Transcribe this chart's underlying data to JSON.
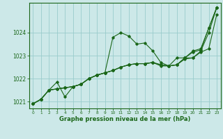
{
  "title": "Graphe pression niveau de la mer (hPa)",
  "bg_color": "#cce8e8",
  "grid_color": "#99cccc",
  "line_color": "#1a6618",
  "text_color": "#1a6618",
  "xlim": [
    -0.5,
    23.5
  ],
  "ylim": [
    1020.7,
    1025.3
  ],
  "yticks": [
    1021,
    1022,
    1023,
    1024
  ],
  "xticks": [
    0,
    1,
    2,
    3,
    4,
    5,
    6,
    7,
    8,
    9,
    10,
    11,
    12,
    13,
    14,
    15,
    16,
    17,
    18,
    19,
    20,
    21,
    22,
    23
  ],
  "series": [
    [
      1020.9,
      1021.1,
      1021.5,
      1021.55,
      1021.6,
      1021.65,
      1021.75,
      1022.0,
      1022.15,
      1022.25,
      1023.8,
      1024.0,
      1023.85,
      1023.5,
      1023.55,
      1023.2,
      1022.7,
      1022.55,
      1022.9,
      1022.9,
      1023.2,
      1023.3,
      1024.2,
      1025.1
    ],
    [
      1020.9,
      1021.1,
      1021.5,
      1021.55,
      1021.6,
      1021.65,
      1021.75,
      1022.0,
      1022.15,
      1022.25,
      1022.35,
      1022.5,
      1022.6,
      1022.65,
      1022.65,
      1022.7,
      1022.6,
      1022.55,
      1022.6,
      1022.9,
      1023.15,
      1023.25,
      1024.2,
      1025.1
    ],
    [
      1020.9,
      1021.1,
      1021.5,
      1021.85,
      1021.2,
      1021.65,
      1021.75,
      1022.0,
      1022.15,
      1022.25,
      1022.35,
      1022.5,
      1022.6,
      1022.65,
      1022.65,
      1022.7,
      1022.6,
      1022.55,
      1022.6,
      1022.9,
      1022.9,
      1023.2,
      1024.0,
      1025.1
    ],
    [
      1020.9,
      1021.1,
      1021.5,
      1021.55,
      1021.6,
      1021.65,
      1021.75,
      1022.0,
      1022.15,
      1022.25,
      1022.35,
      1022.5,
      1022.6,
      1022.65,
      1022.65,
      1022.7,
      1022.55,
      1022.55,
      1022.6,
      1022.85,
      1022.9,
      1023.15,
      1023.3,
      1024.8
    ]
  ]
}
